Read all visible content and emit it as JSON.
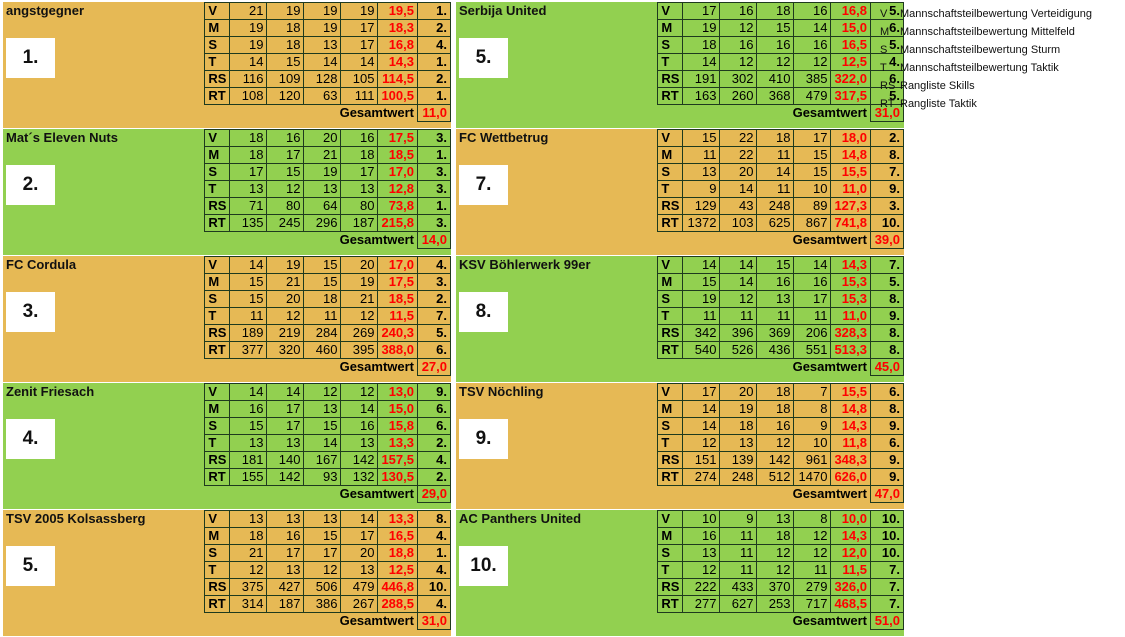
{
  "gesamt_label": "Gesamtwert",
  "columns": {
    "left": [
      {
        "name": "angstgegner",
        "rank": "1.",
        "bg": "orange",
        "rows": [
          {
            "code": "V",
            "values": [
              "21",
              "19",
              "19",
              "19"
            ],
            "avg": "19,5",
            "place": "1."
          },
          {
            "code": "M",
            "values": [
              "19",
              "18",
              "19",
              "17"
            ],
            "avg": "18,3",
            "place": "2."
          },
          {
            "code": "S",
            "values": [
              "19",
              "18",
              "13",
              "17"
            ],
            "avg": "16,8",
            "place": "4."
          },
          {
            "code": "T",
            "values": [
              "14",
              "15",
              "14",
              "14"
            ],
            "avg": "14,3",
            "place": "1."
          },
          {
            "code": "RS",
            "values": [
              "116",
              "109",
              "128",
              "105"
            ],
            "avg": "114,5",
            "place": "2."
          },
          {
            "code": "RT",
            "values": [
              "108",
              "120",
              "63",
              "111"
            ],
            "avg": "100,5",
            "place": "1."
          }
        ],
        "gesamt": "11,0"
      },
      {
        "name": "Mat´s Eleven Nuts",
        "rank": "2.",
        "bg": "green",
        "rows": [
          {
            "code": "V",
            "values": [
              "18",
              "16",
              "20",
              "16"
            ],
            "avg": "17,5",
            "place": "3."
          },
          {
            "code": "M",
            "values": [
              "18",
              "17",
              "21",
              "18"
            ],
            "avg": "18,5",
            "place": "1."
          },
          {
            "code": "S",
            "values": [
              "17",
              "15",
              "19",
              "17"
            ],
            "avg": "17,0",
            "place": "3."
          },
          {
            "code": "T",
            "values": [
              "13",
              "12",
              "13",
              "13"
            ],
            "avg": "12,8",
            "place": "3."
          },
          {
            "code": "RS",
            "values": [
              "71",
              "80",
              "64",
              "80"
            ],
            "avg": "73,8",
            "place": "1."
          },
          {
            "code": "RT",
            "values": [
              "135",
              "245",
              "296",
              "187"
            ],
            "avg": "215,8",
            "place": "3."
          }
        ],
        "gesamt": "14,0"
      },
      {
        "name": "FC Cordula",
        "rank": "3.",
        "bg": "orange",
        "rows": [
          {
            "code": "V",
            "values": [
              "14",
              "19",
              "15",
              "20"
            ],
            "avg": "17,0",
            "place": "4."
          },
          {
            "code": "M",
            "values": [
              "15",
              "21",
              "15",
              "19"
            ],
            "avg": "17,5",
            "place": "3."
          },
          {
            "code": "S",
            "values": [
              "15",
              "20",
              "18",
              "21"
            ],
            "avg": "18,5",
            "place": "2."
          },
          {
            "code": "T",
            "values": [
              "11",
              "12",
              "11",
              "12"
            ],
            "avg": "11,5",
            "place": "7."
          },
          {
            "code": "RS",
            "values": [
              "189",
              "219",
              "284",
              "269"
            ],
            "avg": "240,3",
            "place": "5."
          },
          {
            "code": "RT",
            "values": [
              "377",
              "320",
              "460",
              "395"
            ],
            "avg": "388,0",
            "place": "6."
          }
        ],
        "gesamt": "27,0"
      },
      {
        "name": "Zenit Friesach",
        "rank": "4.",
        "bg": "green",
        "rows": [
          {
            "code": "V",
            "values": [
              "14",
              "14",
              "12",
              "12"
            ],
            "avg": "13,0",
            "place": "9."
          },
          {
            "code": "M",
            "values": [
              "16",
              "17",
              "13",
              "14"
            ],
            "avg": "15,0",
            "place": "6."
          },
          {
            "code": "S",
            "values": [
              "15",
              "17",
              "15",
              "16"
            ],
            "avg": "15,8",
            "place": "6."
          },
          {
            "code": "T",
            "values": [
              "13",
              "13",
              "14",
              "13"
            ],
            "avg": "13,3",
            "place": "2."
          },
          {
            "code": "RS",
            "values": [
              "181",
              "140",
              "167",
              "142"
            ],
            "avg": "157,5",
            "place": "4."
          },
          {
            "code": "RT",
            "values": [
              "155",
              "142",
              "93",
              "132"
            ],
            "avg": "130,5",
            "place": "2."
          }
        ],
        "gesamt": "29,0"
      },
      {
        "name": "TSV 2005 Kolsassberg",
        "rank": "5.",
        "bg": "orange",
        "rows": [
          {
            "code": "V",
            "values": [
              "13",
              "13",
              "13",
              "14"
            ],
            "avg": "13,3",
            "place": "8."
          },
          {
            "code": "M",
            "values": [
              "18",
              "16",
              "15",
              "17"
            ],
            "avg": "16,5",
            "place": "4."
          },
          {
            "code": "S",
            "values": [
              "21",
              "17",
              "17",
              "20"
            ],
            "avg": "18,8",
            "place": "1."
          },
          {
            "code": "T",
            "values": [
              "12",
              "13",
              "12",
              "13"
            ],
            "avg": "12,5",
            "place": "4."
          },
          {
            "code": "RS",
            "values": [
              "375",
              "427",
              "506",
              "479"
            ],
            "avg": "446,8",
            "place": "10."
          },
          {
            "code": "RT",
            "values": [
              "314",
              "187",
              "386",
              "267"
            ],
            "avg": "288,5",
            "place": "4."
          }
        ],
        "gesamt": "31,0"
      }
    ],
    "right": [
      {
        "name": "Serbija United",
        "rank": "5.",
        "bg": "green",
        "rows": [
          {
            "code": "V",
            "values": [
              "17",
              "16",
              "18",
              "16"
            ],
            "avg": "16,8",
            "place": "5."
          },
          {
            "code": "M",
            "values": [
              "19",
              "12",
              "15",
              "14"
            ],
            "avg": "15,0",
            "place": "6."
          },
          {
            "code": "S",
            "values": [
              "18",
              "16",
              "16",
              "16"
            ],
            "avg": "16,5",
            "place": "5."
          },
          {
            "code": "T",
            "values": [
              "14",
              "12",
              "12",
              "12"
            ],
            "avg": "12,5",
            "place": "4."
          },
          {
            "code": "RS",
            "values": [
              "191",
              "302",
              "410",
              "385"
            ],
            "avg": "322,0",
            "place": "6."
          },
          {
            "code": "RT",
            "values": [
              "163",
              "260",
              "368",
              "479"
            ],
            "avg": "317,5",
            "place": "5."
          }
        ],
        "gesamt": "31,0"
      },
      {
        "name": "FC Wettbetrug",
        "rank": "7.",
        "bg": "orange",
        "rows": [
          {
            "code": "V",
            "values": [
              "15",
              "22",
              "18",
              "17"
            ],
            "avg": "18,0",
            "place": "2."
          },
          {
            "code": "M",
            "values": [
              "11",
              "22",
              "11",
              "15"
            ],
            "avg": "14,8",
            "place": "8."
          },
          {
            "code": "S",
            "values": [
              "13",
              "20",
              "14",
              "15"
            ],
            "avg": "15,5",
            "place": "7."
          },
          {
            "code": "T",
            "values": [
              "9",
              "14",
              "11",
              "10"
            ],
            "avg": "11,0",
            "place": "9."
          },
          {
            "code": "RS",
            "values": [
              "129",
              "43",
              "248",
              "89"
            ],
            "avg": "127,3",
            "place": "3."
          },
          {
            "code": "RT",
            "values": [
              "1372",
              "103",
              "625",
              "867"
            ],
            "avg": "741,8",
            "place": "10."
          }
        ],
        "gesamt": "39,0"
      },
      {
        "name": "KSV Böhlerwerk 99er",
        "rank": "8.",
        "bg": "green",
        "rows": [
          {
            "code": "V",
            "values": [
              "14",
              "14",
              "15",
              "14"
            ],
            "avg": "14,3",
            "place": "7."
          },
          {
            "code": "M",
            "values": [
              "15",
              "14",
              "16",
              "16"
            ],
            "avg": "15,3",
            "place": "5."
          },
          {
            "code": "S",
            "values": [
              "19",
              "12",
              "13",
              "17"
            ],
            "avg": "15,3",
            "place": "8."
          },
          {
            "code": "T",
            "values": [
              "11",
              "11",
              "11",
              "11"
            ],
            "avg": "11,0",
            "place": "9."
          },
          {
            "code": "RS",
            "values": [
              "342",
              "396",
              "369",
              "206"
            ],
            "avg": "328,3",
            "place": "8."
          },
          {
            "code": "RT",
            "values": [
              "540",
              "526",
              "436",
              "551"
            ],
            "avg": "513,3",
            "place": "8."
          }
        ],
        "gesamt": "45,0"
      },
      {
        "name": "TSV Nöchling",
        "rank": "9.",
        "bg": "orange",
        "rows": [
          {
            "code": "V",
            "values": [
              "17",
              "20",
              "18",
              "7"
            ],
            "avg": "15,5",
            "place": "6."
          },
          {
            "code": "M",
            "values": [
              "14",
              "19",
              "18",
              "8"
            ],
            "avg": "14,8",
            "place": "8."
          },
          {
            "code": "S",
            "values": [
              "14",
              "18",
              "16",
              "9"
            ],
            "avg": "14,3",
            "place": "9."
          },
          {
            "code": "T",
            "values": [
              "12",
              "13",
              "12",
              "10"
            ],
            "avg": "11,8",
            "place": "6."
          },
          {
            "code": "RS",
            "values": [
              "151",
              "139",
              "142",
              "961"
            ],
            "avg": "348,3",
            "place": "9."
          },
          {
            "code": "RT",
            "values": [
              "274",
              "248",
              "512",
              "1470"
            ],
            "avg": "626,0",
            "place": "9."
          }
        ],
        "gesamt": "47,0"
      },
      {
        "name": "AC Panthers United",
        "rank": "10.",
        "bg": "green",
        "rows": [
          {
            "code": "V",
            "values": [
              "10",
              "9",
              "13",
              "8"
            ],
            "avg": "10,0",
            "place": "10."
          },
          {
            "code": "M",
            "values": [
              "16",
              "11",
              "18",
              "12"
            ],
            "avg": "14,3",
            "place": "10."
          },
          {
            "code": "S",
            "values": [
              "13",
              "11",
              "12",
              "12"
            ],
            "avg": "12,0",
            "place": "10."
          },
          {
            "code": "T",
            "values": [
              "12",
              "11",
              "12",
              "11"
            ],
            "avg": "11,5",
            "place": "7."
          },
          {
            "code": "RS",
            "values": [
              "222",
              "433",
              "370",
              "279"
            ],
            "avg": "326,0",
            "place": "7."
          },
          {
            "code": "RT",
            "values": [
              "277",
              "627",
              "253",
              "717"
            ],
            "avg": "468,5",
            "place": "7."
          }
        ],
        "gesamt": "51,0"
      }
    ]
  },
  "legend": [
    {
      "code": "V",
      "text": "Mannschaftsteilbewertung Verteidigung"
    },
    {
      "code": "M",
      "text": "Mannschaftsteilbewertung Mittelfeld"
    },
    {
      "code": "S",
      "text": "Mannschaftsteilbewertung Sturm"
    },
    {
      "code": "T",
      "text": "Mannschaftsteilbewertung Taktik"
    },
    {
      "code": "RS",
      "text": "Rangliste Skills"
    },
    {
      "code": "RT",
      "text": "Rangliste Taktik"
    }
  ]
}
